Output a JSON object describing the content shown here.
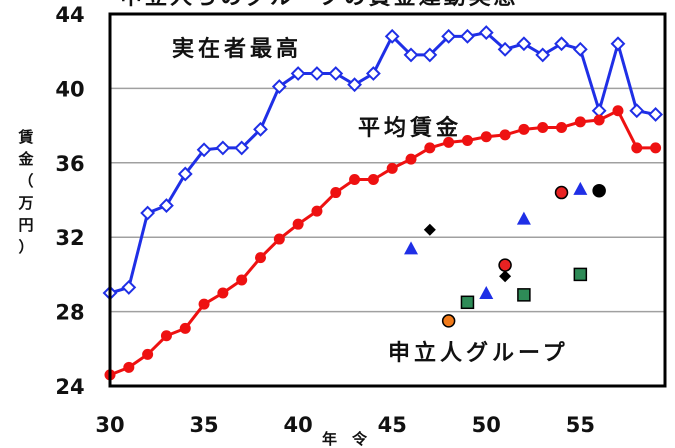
{
  "chart_data": {
    "type": "line",
    "title": "申立人らのグループの賃金運動実態",
    "xlabel": "年　令",
    "ylabel_chars": [
      "賃",
      "金",
      "（",
      "万",
      "円",
      "）"
    ],
    "xlim": [
      30,
      59.5
    ],
    "ylim": [
      24,
      44
    ],
    "x_ticks": [
      30,
      35,
      40,
      45,
      50,
      55
    ],
    "y_ticks": [
      24,
      28,
      32,
      36,
      40,
      44
    ],
    "grid_y": [
      28,
      32,
      36,
      40
    ],
    "colors": {
      "max_series": "#1f2fe6",
      "avg_series": "#ee1111",
      "triangle": "#1f2fe6",
      "square": "#2e8b57",
      "diamond": "#000000",
      "circle_orange": "#f07a1a",
      "circle_red": "#e82222",
      "circle_black": "#000000"
    },
    "series": [
      {
        "name": "実在者最高",
        "x": [
          30,
          31,
          32,
          33,
          34,
          35,
          36,
          37,
          38,
          39,
          40,
          41,
          42,
          43,
          44,
          45,
          46,
          47,
          48,
          49,
          50,
          51,
          52,
          53,
          54,
          55,
          56,
          57,
          58,
          59
        ],
        "values": [
          29.0,
          29.3,
          33.3,
          33.7,
          35.4,
          36.7,
          36.8,
          36.8,
          37.8,
          40.1,
          40.8,
          40.8,
          40.8,
          40.2,
          40.8,
          42.8,
          41.8,
          41.8,
          42.8,
          42.8,
          43.0,
          42.1,
          42.4,
          41.8,
          42.4,
          42.1,
          38.8,
          42.4,
          38.8,
          38.6
        ]
      },
      {
        "name": "平均賃金",
        "x": [
          30,
          31,
          32,
          33,
          34,
          35,
          36,
          37,
          38,
          39,
          40,
          41,
          42,
          43,
          44,
          45,
          46,
          47,
          48,
          49,
          50,
          51,
          52,
          53,
          54,
          55,
          56,
          57,
          58,
          59
        ],
        "values": [
          24.6,
          25.0,
          25.7,
          26.7,
          27.1,
          28.4,
          29.0,
          29.7,
          30.9,
          31.9,
          32.7,
          33.4,
          34.4,
          35.1,
          35.1,
          35.7,
          36.2,
          36.8,
          37.1,
          37.2,
          37.4,
          37.5,
          37.8,
          37.9,
          37.9,
          38.2,
          38.3,
          38.8,
          36.8,
          36.8
        ]
      }
    ],
    "group_label": "申立人グループ",
    "group_points": [
      {
        "shape": "triangle",
        "x": 46,
        "y": 31.4
      },
      {
        "shape": "triangle",
        "x": 50,
        "y": 29.0
      },
      {
        "shape": "triangle",
        "x": 52,
        "y": 33.0
      },
      {
        "shape": "triangle",
        "x": 55,
        "y": 34.6
      },
      {
        "shape": "diamond",
        "x": 47,
        "y": 32.4
      },
      {
        "shape": "diamond",
        "x": 51,
        "y": 29.9
      },
      {
        "shape": "square",
        "x": 49,
        "y": 28.5
      },
      {
        "shape": "square",
        "x": 52,
        "y": 28.9
      },
      {
        "shape": "square",
        "x": 55,
        "y": 30.0
      },
      {
        "shape": "circle_orange",
        "x": 48,
        "y": 27.5
      },
      {
        "shape": "circle_red",
        "x": 51,
        "y": 30.5
      },
      {
        "shape": "circle_red",
        "x": 54,
        "y": 34.4
      },
      {
        "shape": "circle_black",
        "x": 56,
        "y": 34.5
      }
    ]
  }
}
